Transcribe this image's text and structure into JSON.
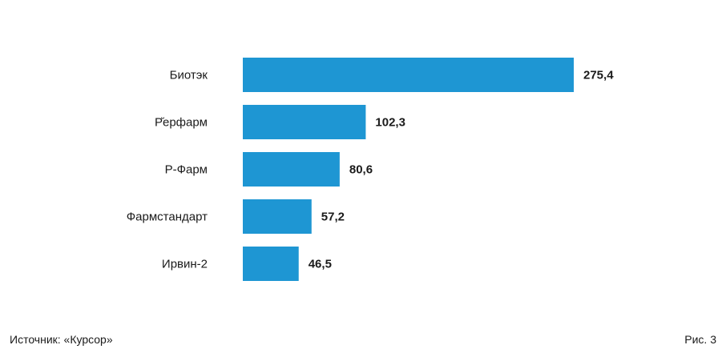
{
  "chart_data": {
    "type": "bar",
    "orientation": "horizontal",
    "categories": [
      "Биотэк",
      "Р̆ерфарм",
      "Р-Фарм",
      "Фармстандарт",
      "Ирвин-2"
    ],
    "values": [
      275.4,
      102.3,
      80.6,
      57.2,
      46.5
    ],
    "value_labels": [
      "275,4",
      "102,3",
      "80,6",
      "57,2",
      "46,5"
    ],
    "bar_color": "#1e96d3",
    "grid": false,
    "legend": "none"
  },
  "footer": {
    "source": "Источник: «Курсор»",
    "figure": "Рис. 3"
  }
}
